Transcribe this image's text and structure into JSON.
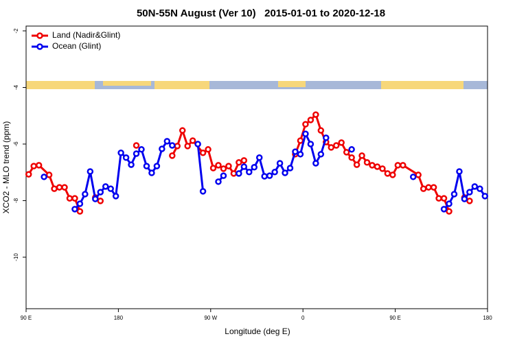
{
  "chart_data": {
    "type": "line",
    "title": "50N-55N August (Ver 10)   2015-01-01 to 2020-12-18",
    "xlabel": "Longitude (deg E)",
    "ylabel": "XCO2 - MLO trend (ppm)",
    "xlim": [
      90,
      540
    ],
    "ylim": [
      -11.82,
      -1.83
    ],
    "xticks": [
      {
        "value": 90,
        "label": "90 E"
      },
      180,
      {
        "value": 270,
        "label": "90 W"
      },
      {
        "value": 360,
        "label": "0"
      },
      {
        "value": 450,
        "label": "90 E"
      },
      {
        "value": 540,
        "label": "180"
      }
    ],
    "yticks": [
      -2,
      -4,
      -6,
      -8,
      -10
    ],
    "legend": "upper left",
    "series": [
      {
        "name": "Land (Nadir&Glint)",
        "color": "#ee0000",
        "x": [
          92.5,
          97.5,
          102.5,
          112.5,
          117.5,
          122.5,
          127.5,
          132.5,
          137.5,
          142.5,
          147.5,
          157.5,
          162.5,
          167.5,
          197.5,
          202.5,
          232.5,
          237.5,
          242.5,
          247.5,
          252.5,
          262.5,
          267.5,
          272.5,
          277.5,
          282.5,
          287.5,
          292.5,
          297.5,
          302.5,
          307.5,
          352.5,
          357.5,
          362.5,
          367.5,
          372.5,
          377.5,
          382.5,
          387.5,
          392.5,
          397.5,
          402.5,
          407.5,
          412.5,
          417.5,
          422.5,
          427.5,
          432.5,
          437.5,
          442.5,
          447.5,
          452.5,
          457.5,
          472.5,
          477.5,
          482.5,
          487.5,
          492.5,
          497.5,
          502.5,
          507.5,
          517.5,
          522.5
        ],
        "values": [
          -7.07,
          -6.78,
          -6.75,
          -7.09,
          -7.58,
          -7.53,
          -7.53,
          -7.92,
          -7.92,
          -8.38,
          null,
          -7.89,
          -8.01,
          null,
          -6.05,
          null,
          -6.41,
          -6.07,
          -5.52,
          -6.07,
          -5.88,
          -6.31,
          -6.19,
          -6.85,
          -6.75,
          -6.87,
          -6.78,
          -7.04,
          -6.65,
          -6.58,
          null,
          -6.36,
          -5.88,
          -5.3,
          -5.15,
          -4.96,
          -5.52,
          -5.93,
          -6.12,
          -6.05,
          -5.95,
          -6.29,
          -6.48,
          -6.73,
          -6.41,
          -6.65,
          -6.75,
          -6.8,
          -6.87,
          -7.04,
          -7.09,
          -6.75,
          -6.75,
          -7.09,
          -7.58,
          -7.53,
          -7.53,
          -7.92,
          -7.92,
          -8.38,
          null,
          -7.89,
          -8.01
        ]
      },
      {
        "name": "Ocean (Glint)",
        "color": "#0000ee",
        "x": [
          107.5,
          112.5,
          137.5,
          142.5,
          147.5,
          152.5,
          157.5,
          162.5,
          167.5,
          172.5,
          177.5,
          182.5,
          187.5,
          192.5,
          197.5,
          202.5,
          207.5,
          212.5,
          217.5,
          222.5,
          227.5,
          232.5,
          237.5,
          257.5,
          262.5,
          267.5,
          277.5,
          282.5,
          287.5,
          297.5,
          302.5,
          307.5,
          312.5,
          317.5,
          322.5,
          327.5,
          332.5,
          337.5,
          342.5,
          347.5,
          352.5,
          357.5,
          362.5,
          367.5,
          372.5,
          377.5,
          382.5,
          387.5,
          407.5,
          412.5,
          467.5,
          472.5,
          497.5,
          502.5,
          507.5,
          512.5,
          517.5,
          522.5,
          527.5,
          532.5,
          537.5
        ],
        "values": [
          -7.16,
          null,
          -8.3,
          -8.11,
          -7.77,
          -6.97,
          -7.94,
          -7.7,
          -7.5,
          -7.58,
          -7.84,
          -6.31,
          -6.48,
          -6.73,
          -6.34,
          -6.19,
          -6.78,
          -7.02,
          -6.78,
          -6.17,
          -5.9,
          -6.05,
          null,
          -6.0,
          -7.67,
          null,
          -7.33,
          -7.12,
          null,
          -7.04,
          -6.8,
          -6.99,
          -6.82,
          -6.48,
          -7.14,
          -7.12,
          -6.99,
          -6.68,
          -7.02,
          -6.85,
          -6.27,
          -6.36,
          -5.64,
          -6.0,
          -6.68,
          -6.36,
          -5.78,
          null,
          -6.19,
          null,
          -7.16,
          null,
          -8.3,
          -8.11,
          -7.77,
          -6.97,
          -7.94,
          -7.7,
          -7.5,
          -7.58,
          -7.84
        ]
      }
    ]
  }
}
